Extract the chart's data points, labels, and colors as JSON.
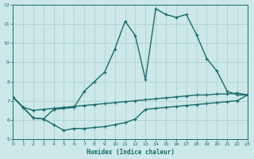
{
  "xlabel": "Humidex (Indice chaleur)",
  "bg_color": "#cce8e8",
  "line_color": "#1a6b6b",
  "grid_color": "#aacccc",
  "xlim": [
    0,
    23
  ],
  "ylim": [
    5,
    12
  ],
  "xticks": [
    0,
    1,
    2,
    3,
    4,
    5,
    6,
    7,
    8,
    9,
    10,
    11,
    12,
    13,
    14,
    15,
    16,
    17,
    18,
    19,
    20,
    21,
    22,
    23
  ],
  "yticks": [
    5,
    6,
    7,
    8,
    9,
    10,
    11,
    12
  ],
  "line1_x": [
    0,
    1,
    2,
    3,
    4,
    5,
    6,
    7,
    8,
    9,
    10,
    11,
    12,
    13,
    14,
    15,
    16,
    17,
    18,
    19,
    20,
    21,
    22,
    23
  ],
  "line1_y": [
    7.2,
    6.65,
    6.5,
    6.55,
    6.6,
    6.65,
    6.7,
    6.75,
    6.8,
    6.85,
    6.9,
    6.95,
    7.0,
    7.05,
    7.1,
    7.15,
    7.2,
    7.25,
    7.3,
    7.3,
    7.35,
    7.35,
    7.4,
    7.3
  ],
  "line2_x": [
    0,
    1,
    2,
    3,
    4,
    5,
    6,
    7,
    8,
    9,
    10,
    11,
    12,
    13,
    14,
    15,
    16,
    17,
    18,
    19,
    20,
    21,
    22,
    23
  ],
  "line2_y": [
    7.2,
    6.65,
    6.1,
    6.05,
    6.55,
    6.6,
    6.65,
    7.5,
    8.0,
    8.5,
    9.7,
    11.15,
    10.4,
    8.1,
    11.8,
    11.5,
    11.35,
    11.5,
    10.45,
    9.2,
    8.55,
    7.5,
    7.3,
    7.3
  ],
  "line3_x": [
    0,
    1,
    2,
    3,
    4,
    5,
    6,
    7,
    8,
    9,
    10,
    11,
    12,
    13,
    14,
    15,
    16,
    17,
    18,
    19,
    20,
    21,
    22,
    23
  ],
  "line3_y": [
    7.2,
    6.65,
    6.1,
    6.05,
    5.75,
    5.45,
    5.55,
    5.55,
    5.6,
    5.65,
    5.75,
    5.85,
    6.05,
    6.55,
    6.6,
    6.65,
    6.7,
    6.75,
    6.8,
    6.85,
    6.9,
    6.95,
    7.0,
    7.3
  ]
}
